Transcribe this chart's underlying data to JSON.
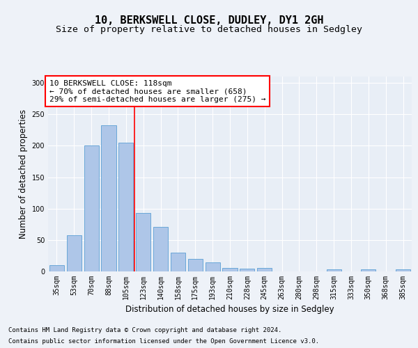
{
  "title1": "10, BERKSWELL CLOSE, DUDLEY, DY1 2GH",
  "title2": "Size of property relative to detached houses in Sedgley",
  "xlabel": "Distribution of detached houses by size in Sedgley",
  "ylabel": "Number of detached properties",
  "bar_categories": [
    "35sqm",
    "53sqm",
    "70sqm",
    "88sqm",
    "105sqm",
    "123sqm",
    "140sqm",
    "158sqm",
    "175sqm",
    "193sqm",
    "210sqm",
    "228sqm",
    "245sqm",
    "263sqm",
    "280sqm",
    "298sqm",
    "315sqm",
    "333sqm",
    "350sqm",
    "368sqm",
    "385sqm"
  ],
  "bar_values": [
    10,
    58,
    200,
    233,
    205,
    93,
    71,
    30,
    20,
    14,
    5,
    4,
    5,
    0,
    0,
    0,
    3,
    0,
    3,
    0,
    3
  ],
  "bar_color": "#aec6e8",
  "bar_edge_color": "#5a9fd4",
  "highlight_index": 4,
  "ylim": [
    0,
    310
  ],
  "yticks": [
    0,
    50,
    100,
    150,
    200,
    250,
    300
  ],
  "annotation_title": "10 BERKSWELL CLOSE: 118sqm",
  "annotation_line1": "← 70% of detached houses are smaller (658)",
  "annotation_line2": "29% of semi-detached houses are larger (275) →",
  "footnote1": "Contains HM Land Registry data © Crown copyright and database right 2024.",
  "footnote2": "Contains public sector information licensed under the Open Government Licence v3.0.",
  "background_color": "#eef2f8",
  "plot_bg_color": "#e8eef6",
  "grid_color": "#ffffff",
  "title1_fontsize": 11,
  "title2_fontsize": 9.5,
  "xlabel_fontsize": 8.5,
  "ylabel_fontsize": 8.5,
  "tick_fontsize": 7,
  "annotation_fontsize": 8,
  "footnote_fontsize": 6.5
}
